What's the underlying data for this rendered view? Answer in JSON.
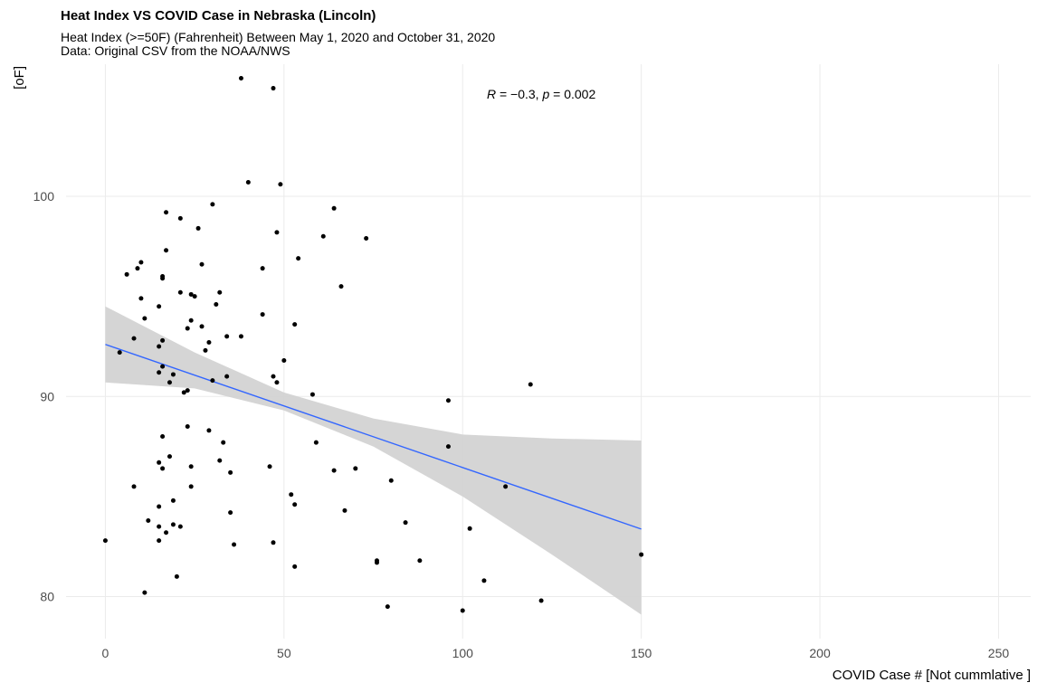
{
  "chart_data": {
    "type": "scatter",
    "title": "Heat Index VS COVID Case in Nebraska (Lincoln)",
    "subtitle": "Heat Index (>=50F) (Fahrenheit) Between May 1, 2020  and October 31, 2020",
    "caption": "Data: Original CSV from the NOAA/NWS",
    "xlabel": "COVID Case # [Not cummlative ]",
    "ylabel": "[oF]",
    "xlim": [
      -11,
      259
    ],
    "ylim": [
      77.9,
      106.6
    ],
    "xticks": [
      0,
      50,
      100,
      150,
      200,
      250
    ],
    "yticks": [
      80,
      90,
      100
    ],
    "grid": true,
    "annotation": {
      "R_label": "R",
      "R_value": " = −0.3, ",
      "p_label": "p",
      "p_value": " = 0.002",
      "x": 122,
      "y": 105.1
    },
    "points": [
      [
        0,
        82.8
      ],
      [
        4,
        92.2
      ],
      [
        6,
        96.1
      ],
      [
        8,
        92.9
      ],
      [
        8,
        85.5
      ],
      [
        9,
        96.4
      ],
      [
        10,
        96.7
      ],
      [
        10,
        94.9
      ],
      [
        11,
        93.9
      ],
      [
        11,
        80.2
      ],
      [
        12,
        83.8
      ],
      [
        15,
        94.5
      ],
      [
        15,
        92.5
      ],
      [
        15,
        91.2
      ],
      [
        15,
        86.7
      ],
      [
        15,
        84.5
      ],
      [
        15,
        83.5
      ],
      [
        15,
        82.8
      ],
      [
        16,
        96.0
      ],
      [
        16,
        95.9
      ],
      [
        16,
        92.8
      ],
      [
        16,
        91.5
      ],
      [
        16,
        88.0
      ],
      [
        16,
        86.4
      ],
      [
        17,
        99.2
      ],
      [
        17,
        97.3
      ],
      [
        17,
        83.2
      ],
      [
        18,
        90.7
      ],
      [
        18,
        87.0
      ],
      [
        19,
        84.8
      ],
      [
        19,
        83.6
      ],
      [
        19,
        91.1
      ],
      [
        20,
        81.0
      ],
      [
        21,
        98.9
      ],
      [
        21,
        95.2
      ],
      [
        21,
        83.5
      ],
      [
        22,
        90.2
      ],
      [
        23,
        93.4
      ],
      [
        23,
        90.3
      ],
      [
        23,
        88.5
      ],
      [
        24,
        93.8
      ],
      [
        24,
        95.1
      ],
      [
        24,
        86.5
      ],
      [
        24,
        85.5
      ],
      [
        25,
        95.0
      ],
      [
        26,
        98.4
      ],
      [
        27,
        96.6
      ],
      [
        27,
        93.5
      ],
      [
        28,
        92.3
      ],
      [
        29,
        92.7
      ],
      [
        29,
        88.3
      ],
      [
        30,
        99.6
      ],
      [
        30,
        90.8
      ],
      [
        31,
        94.6
      ],
      [
        32,
        95.2
      ],
      [
        32,
        86.8
      ],
      [
        33,
        87.7
      ],
      [
        34,
        93.0
      ],
      [
        34,
        91.0
      ],
      [
        35,
        86.2
      ],
      [
        35,
        84.2
      ],
      [
        36,
        82.6
      ],
      [
        38,
        105.9
      ],
      [
        38,
        93.0
      ],
      [
        40,
        100.7
      ],
      [
        44,
        96.4
      ],
      [
        44,
        94.1
      ],
      [
        46,
        86.5
      ],
      [
        47,
        105.4
      ],
      [
        47,
        91.0
      ],
      [
        47,
        82.7
      ],
      [
        48,
        98.2
      ],
      [
        48,
        90.7
      ],
      [
        49,
        100.6
      ],
      [
        50,
        91.8
      ],
      [
        52,
        85.1
      ],
      [
        53,
        93.6
      ],
      [
        53,
        84.6
      ],
      [
        53,
        81.5
      ],
      [
        54,
        96.9
      ],
      [
        58,
        90.1
      ],
      [
        59,
        87.7
      ],
      [
        61,
        98.0
      ],
      [
        64,
        99.4
      ],
      [
        64,
        86.3
      ],
      [
        66,
        95.5
      ],
      [
        67,
        84.3
      ],
      [
        70,
        86.4
      ],
      [
        73,
        97.9
      ],
      [
        76,
        81.8
      ],
      [
        76,
        81.7
      ],
      [
        79,
        79.5
      ],
      [
        80,
        85.8
      ],
      [
        84,
        83.7
      ],
      [
        88,
        81.8
      ],
      [
        96,
        89.8
      ],
      [
        96,
        87.5
      ],
      [
        100,
        79.3
      ],
      [
        102,
        83.4
      ],
      [
        106,
        80.8
      ],
      [
        112,
        85.5
      ],
      [
        119,
        90.6
      ],
      [
        122,
        79.8
      ],
      [
        150,
        82.1
      ]
    ],
    "regression": {
      "intercept": 92.6,
      "slope": -0.0615,
      "x_range": [
        0,
        150
      ]
    },
    "confidence_band": {
      "x": [
        0,
        25,
        50,
        75,
        100,
        125,
        150
      ],
      "lower": [
        90.7,
        90.4,
        89.3,
        87.5,
        85.0,
        82.1,
        79.1
      ],
      "upper": [
        94.5,
        92.2,
        90.2,
        88.9,
        88.1,
        87.9,
        87.8
      ]
    },
    "colors": {
      "point": "#000000",
      "line": "#3366ff",
      "band": "#d3d3d3",
      "grid": "#ebebeb"
    }
  }
}
